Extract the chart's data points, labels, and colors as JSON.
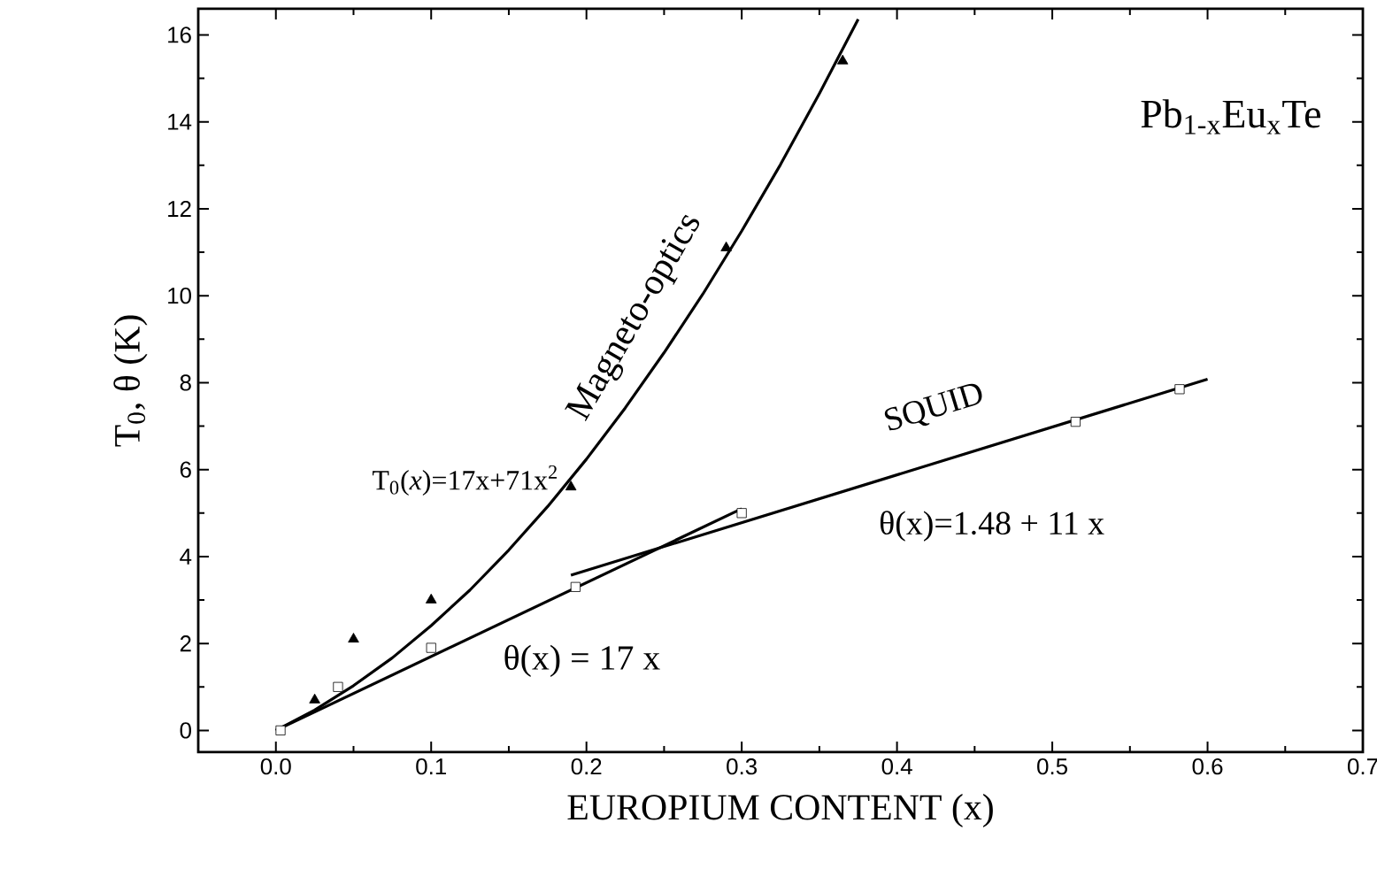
{
  "chart_data": {
    "type": "scatter",
    "title": "Pb$_{1-x}$Eu$_{x}$Te",
    "xlabel": "EUROPIUM CONTENT  (x)",
    "ylabel": "T$_{0}$,  θ  (K)",
    "xlim": [
      -0.05,
      0.7
    ],
    "ylim": [
      -0.5,
      16.6
    ],
    "xticks": [
      {
        "value": 0,
        "label": "0.0"
      },
      0.1,
      0.2,
      0.3,
      0.4,
      0.5,
      0.6,
      0.7
    ],
    "yticks": [
      0,
      2,
      4,
      6,
      8,
      10,
      12,
      14,
      16
    ],
    "grid": false,
    "series": [
      {
        "type": "line",
        "color": "#000000",
        "line_style": "solid",
        "marker": "none",
        "x": [
          0,
          0.025,
          0.05,
          0.075,
          0.1,
          0.125,
          0.15,
          0.175,
          0.2,
          0.225,
          0.25,
          0.275,
          0.3,
          0.325,
          0.35,
          0.375
        ],
        "values": [
          0,
          0.47,
          1.03,
          1.67,
          2.41,
          3.23,
          4.15,
          5.15,
          6.24,
          7.42,
          8.69,
          10.04,
          11.49,
          13.02,
          14.65,
          16.36
        ]
      },
      {
        "type": "line",
        "color": "#000000",
        "line_style": "solid",
        "marker": "none",
        "x": [
          0,
          0.3
        ],
        "values": [
          0,
          5.1
        ]
      },
      {
        "type": "line",
        "color": "#000000",
        "line_style": "solid",
        "marker": "none",
        "x": [
          0.19,
          0.6
        ],
        "values": [
          3.57,
          8.08
        ]
      },
      {
        "color": "#000000",
        "marker": "triangle",
        "x": [
          0.025,
          0.05,
          0.1,
          0.19,
          0.29,
          0.365
        ],
        "values": [
          0.7,
          2.1,
          3.0,
          5.6,
          11.1,
          15.4
        ]
      },
      {
        "color": "#000000",
        "marker": "square",
        "x": [
          0.003,
          0.04,
          0.1,
          0.193,
          0.3,
          0.515,
          0.582
        ],
        "values": [
          0,
          1.0,
          1.9,
          3.3,
          5.0,
          7.1,
          7.85
        ]
      }
    ],
    "annotations": [
      "T$_{0}$(*x*)=17x+71x$^{2}$",
      "Magneto-optics",
      "SQUID",
      "θ(x) = 17 x",
      "θ(x)=1.48 + 11 x"
    ]
  }
}
